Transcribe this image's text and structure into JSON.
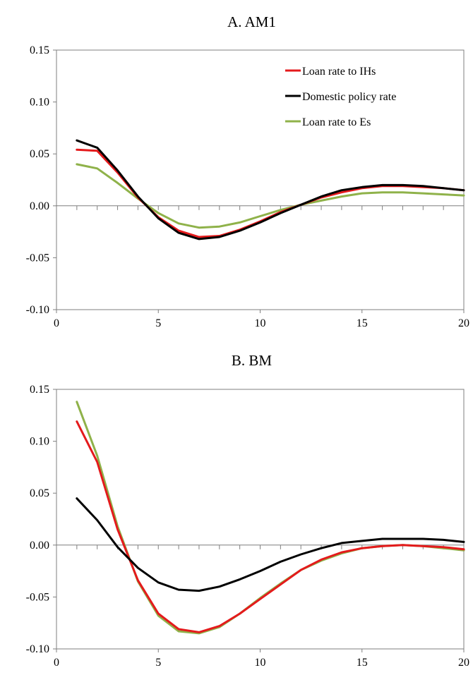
{
  "colors": {
    "loan_ih": "#e41a1c",
    "policy": "#000000",
    "loan_e": "#8fb24a",
    "axis": "#7f7f7f"
  },
  "chart_data": [
    {
      "type": "line",
      "title": "A. AM1",
      "xlabel": "",
      "ylabel": "",
      "xlim": [
        0,
        20
      ],
      "ylim": [
        -0.1,
        0.15
      ],
      "xticks": [
        0,
        5,
        10,
        15,
        20
      ],
      "yticks": [
        0.15,
        0.1,
        0.05,
        0.0,
        -0.05,
        -0.1
      ],
      "xtick_labels": [
        "0",
        "5",
        "10",
        "15",
        "20"
      ],
      "ytick_labels": [
        "0.15",
        "0.10",
        "0.05",
        "0.00",
        "-0.05",
        "-0.10"
      ],
      "grid": false,
      "legend_position": "top-right",
      "x": [
        1,
        2,
        3,
        4,
        5,
        6,
        7,
        8,
        9,
        10,
        11,
        12,
        13,
        14,
        15,
        16,
        17,
        18,
        19,
        20
      ],
      "series": [
        {
          "name": "Loan rate to IHs",
          "color_key": "loan_ih",
          "values": [
            0.054,
            0.053,
            0.032,
            0.008,
            -0.011,
            -0.024,
            -0.03,
            -0.029,
            -0.023,
            -0.015,
            -0.006,
            0.001,
            0.008,
            0.013,
            0.017,
            0.019,
            0.019,
            0.018,
            0.017,
            0.015
          ]
        },
        {
          "name": "Domestic policy rate",
          "color_key": "policy",
          "values": [
            0.063,
            0.056,
            0.034,
            0.009,
            -0.012,
            -0.026,
            -0.032,
            -0.03,
            -0.024,
            -0.016,
            -0.007,
            0.001,
            0.009,
            0.015,
            0.018,
            0.02,
            0.02,
            0.019,
            0.017,
            0.015
          ]
        },
        {
          "name": "Loan rate to Es",
          "color_key": "loan_e",
          "values": [
            0.04,
            0.036,
            0.022,
            0.007,
            -0.007,
            -0.017,
            -0.021,
            -0.02,
            -0.016,
            -0.01,
            -0.004,
            0.001,
            0.005,
            0.009,
            0.012,
            0.013,
            0.013,
            0.012,
            0.011,
            0.01
          ]
        }
      ]
    },
    {
      "type": "line",
      "title": "B. BM",
      "xlabel": "",
      "ylabel": "",
      "xlim": [
        0,
        20
      ],
      "ylim": [
        -0.1,
        0.15
      ],
      "xticks": [
        0,
        5,
        10,
        15,
        20
      ],
      "yticks": [
        0.15,
        0.1,
        0.05,
        0.0,
        -0.05,
        -0.1
      ],
      "xtick_labels": [
        "0",
        "5",
        "10",
        "15",
        "20"
      ],
      "ytick_labels": [
        "0.15",
        "0.10",
        "0.05",
        "0.00",
        "-0.05",
        "-0.10"
      ],
      "grid": false,
      "legend_position": "none",
      "x": [
        1,
        2,
        3,
        4,
        5,
        6,
        7,
        8,
        9,
        10,
        11,
        12,
        13,
        14,
        15,
        16,
        17,
        18,
        19,
        20
      ],
      "series": [
        {
          "name": "Loan rate to IHs",
          "color_key": "loan_ih",
          "values": [
            0.119,
            0.08,
            0.015,
            -0.034,
            -0.066,
            -0.081,
            -0.084,
            -0.078,
            -0.066,
            -0.052,
            -0.038,
            -0.024,
            -0.014,
            -0.007,
            -0.003,
            -0.001,
            0.0,
            -0.001,
            -0.002,
            -0.004
          ]
        },
        {
          "name": "Domestic policy rate",
          "color_key": "policy",
          "values": [
            0.045,
            0.024,
            -0.002,
            -0.022,
            -0.036,
            -0.043,
            -0.044,
            -0.04,
            -0.033,
            -0.025,
            -0.016,
            -0.009,
            -0.003,
            0.002,
            0.004,
            0.006,
            0.006,
            0.006,
            0.005,
            0.003
          ]
        },
        {
          "name": "Loan rate to Es",
          "color_key": "loan_e",
          "values": [
            0.138,
            0.086,
            0.018,
            -0.035,
            -0.068,
            -0.083,
            -0.085,
            -0.079,
            -0.066,
            -0.051,
            -0.037,
            -0.024,
            -0.015,
            -0.008,
            -0.003,
            -0.001,
            0.0,
            -0.001,
            -0.003,
            -0.005
          ]
        }
      ]
    }
  ]
}
